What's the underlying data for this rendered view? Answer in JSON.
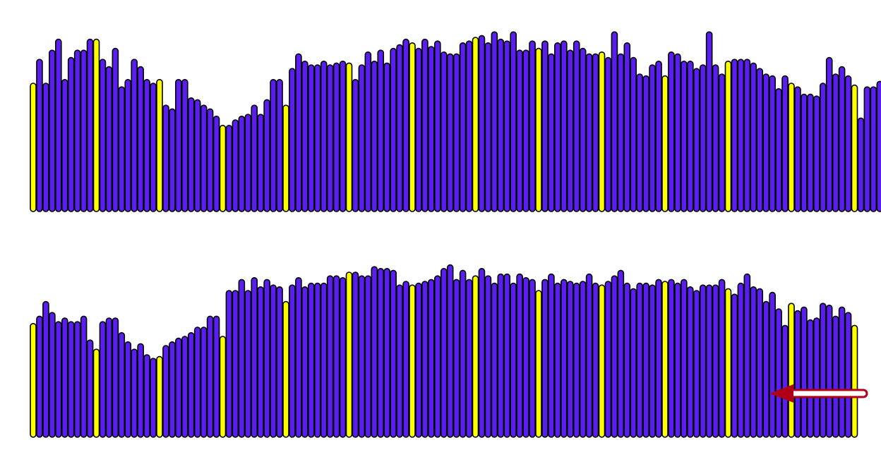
{
  "colors": {
    "bar": "#5a1ff0",
    "highlight": "#ffff00",
    "outline": "#000000",
    "arrow": "#b00018",
    "background": "#ffffff"
  },
  "chart_data": [
    {
      "type": "bar",
      "title": "",
      "xlabel": "",
      "ylabel": "",
      "grid": false,
      "legend": "none",
      "ylim": [
        0,
        100
      ],
      "highlight_every": 10,
      "values": [
        70,
        83,
        70,
        88,
        94,
        72,
        84,
        88,
        88,
        94,
        94,
        83,
        79,
        89,
        68,
        72,
        83,
        79,
        72,
        70,
        72,
        58,
        56,
        72,
        72,
        62,
        61,
        58,
        56,
        52,
        47,
        47,
        50,
        52,
        53,
        58,
        53,
        61,
        72,
        72,
        58,
        78,
        86,
        82,
        80,
        80,
        82,
        80,
        81,
        82,
        81,
        72,
        80,
        87,
        82,
        88,
        81,
        89,
        91,
        94,
        92,
        89,
        94,
        90,
        93,
        87,
        86,
        86,
        92,
        93,
        95,
        96,
        92,
        98,
        94,
        93,
        98,
        88,
        88,
        93,
        89,
        93,
        86,
        92,
        93,
        88,
        93,
        89,
        86,
        86,
        87,
        84,
        98,
        86,
        92,
        84,
        75,
        74,
        80,
        82,
        74,
        87,
        86,
        82,
        82,
        78,
        80,
        98,
        80,
        75,
        82,
        83,
        83,
        83,
        81,
        78,
        75,
        74,
        67,
        74,
        70,
        68,
        64,
        64,
        63,
        70,
        84,
        75,
        79,
        74,
        69,
        51,
        68,
        68,
        71
      ]
    },
    {
      "type": "bar",
      "title": "",
      "xlabel": "",
      "ylabel": "",
      "grid": false,
      "legend": "none",
      "ylim": [
        0,
        100
      ],
      "highlight_every": 10,
      "values": [
        62,
        66,
        74,
        68,
        63,
        65,
        63,
        63,
        66,
        53,
        48,
        63,
        65,
        65,
        57,
        52,
        48,
        51,
        45,
        43,
        44,
        50,
        52,
        54,
        55,
        57,
        60,
        60,
        66,
        66,
        55,
        80,
        80,
        86,
        80,
        87,
        82,
        86,
        83,
        82,
        74,
        83,
        87,
        82,
        84,
        84,
        84,
        88,
        88,
        87,
        90,
        90,
        88,
        88,
        93,
        92,
        92,
        91,
        83,
        85,
        83,
        84,
        85,
        86,
        88,
        92,
        94,
        86,
        91,
        86,
        88,
        92,
        88,
        84,
        89,
        89,
        84,
        89,
        87,
        86,
        80,
        86,
        89,
        84,
        86,
        85,
        84,
        85,
        89,
        84,
        83,
        85,
        88,
        91,
        84,
        81,
        84,
        84,
        83,
        86,
        85,
        86,
        84,
        86,
        82,
        80,
        83,
        83,
        83,
        86,
        81,
        78,
        84,
        89,
        82,
        81,
        74,
        79,
        70,
        61,
        73,
        69,
        71,
        64,
        65,
        73,
        72,
        66,
        71,
        68,
        61
      ]
    }
  ]
}
